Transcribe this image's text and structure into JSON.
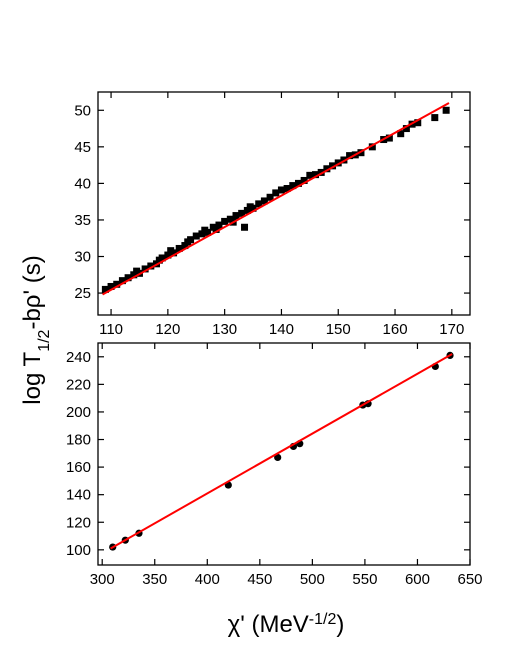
{
  "chart_data": [
    {
      "type": "scatter",
      "ylabel": [
        "log T",
        "1/2",
        "-bρ' (s)"
      ],
      "xlim": [
        107.7,
        173.2
      ],
      "ylim": [
        22,
        52.5
      ],
      "xticks": [
        110,
        120,
        130,
        140,
        150,
        160,
        170
      ],
      "yticks": [
        25,
        30,
        35,
        40,
        45,
        50
      ],
      "series": [
        {
          "marker": "square",
          "color": "#000000",
          "x": [
            109,
            110,
            111,
            112,
            113,
            114,
            114.5,
            115,
            116,
            117,
            118,
            118.5,
            119,
            120,
            120.5,
            121,
            122,
            123,
            123.5,
            124,
            125,
            126,
            126.5,
            127,
            128,
            128.5,
            129,
            130,
            131,
            131.5,
            132,
            133,
            133.5,
            134,
            134.5,
            135,
            136,
            137,
            138,
            139,
            140,
            141,
            142,
            143,
            144,
            145,
            146,
            147,
            148,
            149,
            150,
            151,
            152,
            153,
            154,
            156,
            158,
            159,
            161,
            162,
            163,
            164,
            167,
            169
          ],
          "y": [
            25.5,
            25.9,
            26.2,
            26.7,
            27.1,
            27.5,
            28,
            27.7,
            28.3,
            28.7,
            29,
            29.5,
            29.8,
            30.2,
            30.8,
            30.5,
            31.1,
            31.5,
            32,
            32.3,
            32.8,
            33.1,
            33.6,
            33.3,
            34,
            33.7,
            34.3,
            34.8,
            35.1,
            34.7,
            35.6,
            35.9,
            34,
            36.3,
            36.8,
            36.6,
            37.2,
            37.6,
            38.1,
            38.7,
            39.1,
            39.3,
            39.7,
            40,
            40.4,
            41.1,
            41.2,
            41.5,
            42,
            42.4,
            42.8,
            43.2,
            43.8,
            43.9,
            44.2,
            45,
            46,
            46.2,
            46.8,
            47.5,
            48.1,
            48.3,
            49,
            50
          ]
        },
        {
          "marker": "line",
          "color": "#ff0000",
          "x": [
            108.5,
            169.5
          ],
          "y": [
            24.8,
            51.0
          ]
        }
      ]
    },
    {
      "type": "scatter",
      "xlabel": [
        "χ' (MeV",
        "-1/2",
        ")"
      ],
      "xlim": [
        296,
        650
      ],
      "ylim": [
        89,
        250
      ],
      "xticks": [
        300,
        350,
        400,
        450,
        500,
        550,
        600,
        650
      ],
      "yticks": [
        100,
        120,
        140,
        160,
        180,
        200,
        220,
        240
      ],
      "series": [
        {
          "marker": "circle",
          "color": "#000000",
          "x": [
            310,
            322,
            335,
            420,
            467,
            482,
            488,
            548,
            553,
            617,
            631
          ],
          "y": [
            102,
            107,
            112,
            147,
            167,
            175,
            177,
            205,
            206,
            233,
            241
          ]
        },
        {
          "marker": "line",
          "color": "#ff0000",
          "x": [
            308,
            633
          ],
          "y": [
            101,
            242
          ]
        }
      ]
    }
  ]
}
